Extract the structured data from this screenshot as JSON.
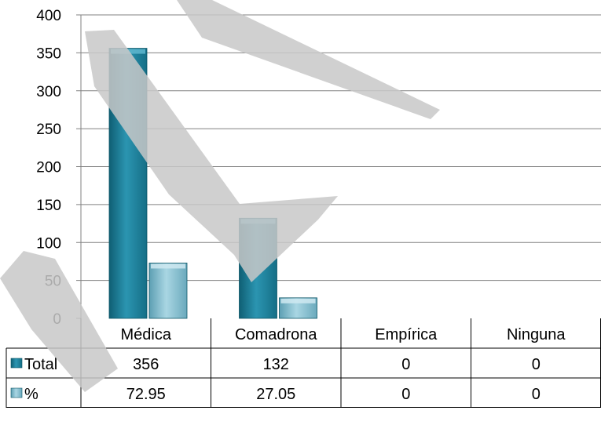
{
  "chart_data": {
    "type": "bar",
    "title": "",
    "xlabel": "",
    "ylabel": "",
    "ylim": [
      0,
      400
    ],
    "yticks": [
      0,
      50,
      100,
      150,
      200,
      250,
      300,
      350,
      400
    ],
    "grid": true,
    "legend": "data-table",
    "categories": [
      "Médica",
      "Comadrona",
      "Empírica",
      "Ninguna"
    ],
    "series": [
      {
        "name": "Total",
        "values": [
          356,
          132,
          0,
          0
        ],
        "labels": [
          "356",
          "132",
          "0",
          "0"
        ],
        "color": "#1f7f99"
      },
      {
        "name": "%",
        "values": [
          72.95,
          27.05,
          0,
          0
        ],
        "labels": [
          "72.95",
          "27.05",
          "0",
          "0"
        ],
        "color": "#7fbdd0"
      }
    ],
    "watermark_color": "#c8c8c8"
  }
}
